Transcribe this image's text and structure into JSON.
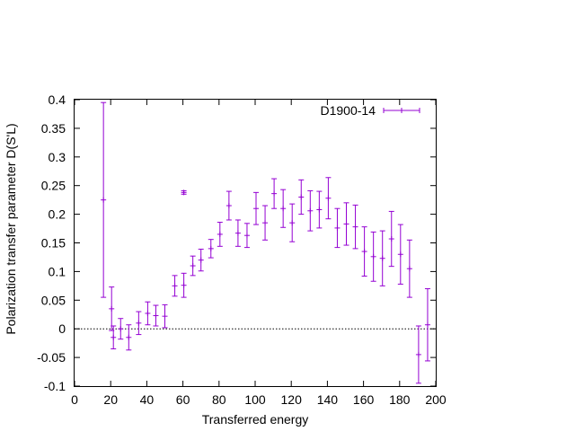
{
  "chart_data": {
    "type": "scatter",
    "xlabel": "Transferred energy",
    "ylabel": "Polarization transfer parameter D(S'L)",
    "xlim": [
      0,
      200
    ],
    "ylim": [
      -0.1,
      0.4
    ],
    "xticks": [
      0,
      20,
      40,
      60,
      80,
      100,
      120,
      140,
      160,
      180,
      200
    ],
    "yticks": [
      -0.1,
      -0.05,
      0,
      0.05,
      0.1,
      0.15,
      0.2,
      0.25,
      0.3,
      0.35,
      0.4
    ],
    "xtick_labels": [
      "0",
      "20",
      "40",
      "60",
      "80",
      "100",
      "120",
      "140",
      "160",
      "180",
      "200"
    ],
    "ytick_labels": [
      "-0.1",
      "-0.05",
      "0",
      "0.05",
      "0.1",
      "0.15",
      "0.2",
      "0.25",
      "0.3",
      "0.35",
      "0.4"
    ],
    "zero_line": true,
    "grid": false,
    "legend_position": "top-right",
    "series": [
      {
        "name": "D1900-14",
        "color": "#9400d3",
        "points": [
          {
            "x": 16,
            "y": 0.225,
            "err": 0.17
          },
          {
            "x": 20.5,
            "y": 0.035,
            "err": 0.038
          },
          {
            "x": 21.5,
            "y": -0.015,
            "err": 0.02
          },
          {
            "x": 25.5,
            "y": 0.0,
            "err": 0.018
          },
          {
            "x": 30,
            "y": -0.015,
            "err": 0.022
          },
          {
            "x": 35.5,
            "y": 0.01,
            "err": 0.02
          },
          {
            "x": 40.5,
            "y": 0.027,
            "err": 0.02
          },
          {
            "x": 45,
            "y": 0.023,
            "err": 0.018
          },
          {
            "x": 50,
            "y": 0.022,
            "err": 0.02
          },
          {
            "x": 55.5,
            "y": 0.075,
            "err": 0.018
          },
          {
            "x": 60.5,
            "y": 0.238,
            "err": 0.003
          },
          {
            "x": 60.5,
            "y": 0.076,
            "err": 0.021
          },
          {
            "x": 65.5,
            "y": 0.11,
            "err": 0.017
          },
          {
            "x": 70,
            "y": 0.12,
            "err": 0.019
          },
          {
            "x": 75.5,
            "y": 0.14,
            "err": 0.016
          },
          {
            "x": 80.5,
            "y": 0.165,
            "err": 0.021
          },
          {
            "x": 85.5,
            "y": 0.215,
            "err": 0.025
          },
          {
            "x": 90.5,
            "y": 0.167,
            "err": 0.023
          },
          {
            "x": 95.5,
            "y": 0.163,
            "err": 0.021
          },
          {
            "x": 100.5,
            "y": 0.21,
            "err": 0.028
          },
          {
            "x": 105.5,
            "y": 0.185,
            "err": 0.03
          },
          {
            "x": 110.5,
            "y": 0.236,
            "err": 0.026
          },
          {
            "x": 115.5,
            "y": 0.21,
            "err": 0.033
          },
          {
            "x": 120.5,
            "y": 0.185,
            "err": 0.033
          },
          {
            "x": 125.5,
            "y": 0.23,
            "err": 0.03
          },
          {
            "x": 130.5,
            "y": 0.206,
            "err": 0.035
          },
          {
            "x": 135.5,
            "y": 0.208,
            "err": 0.032
          },
          {
            "x": 140.5,
            "y": 0.228,
            "err": 0.036
          },
          {
            "x": 145.5,
            "y": 0.176,
            "err": 0.034
          },
          {
            "x": 150.5,
            "y": 0.183,
            "err": 0.037
          },
          {
            "x": 155.5,
            "y": 0.178,
            "err": 0.038
          },
          {
            "x": 160.5,
            "y": 0.135,
            "err": 0.043
          },
          {
            "x": 165.5,
            "y": 0.126,
            "err": 0.043
          },
          {
            "x": 170.5,
            "y": 0.123,
            "err": 0.048
          },
          {
            "x": 175.5,
            "y": 0.157,
            "err": 0.048
          },
          {
            "x": 180.5,
            "y": 0.13,
            "err": 0.052
          },
          {
            "x": 185.5,
            "y": 0.105,
            "err": 0.05
          },
          {
            "x": 190.5,
            "y": -0.045,
            "err": 0.05
          },
          {
            "x": 195.5,
            "y": 0.007,
            "err": 0.063
          }
        ]
      }
    ]
  }
}
